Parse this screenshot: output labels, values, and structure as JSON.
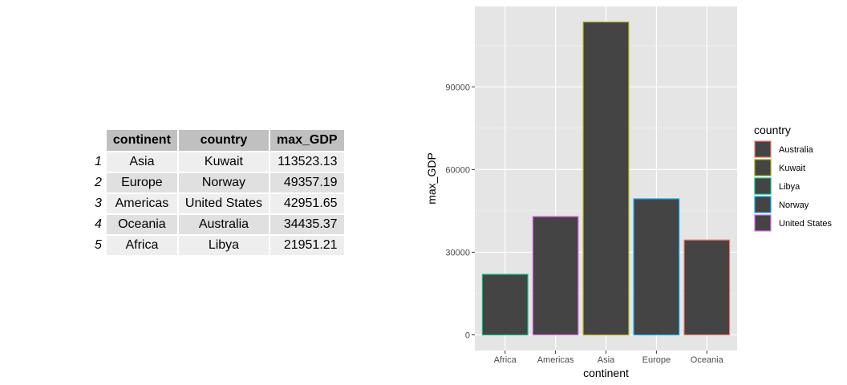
{
  "table": {
    "headers": [
      "continent",
      "country",
      "max_GDP"
    ],
    "rows": [
      {
        "rowname": "1",
        "continent": "Asia",
        "country": "Kuwait",
        "max_GDP": "113523.13"
      },
      {
        "rowname": "2",
        "continent": "Europe",
        "country": "Norway",
        "max_GDP": "49357.19"
      },
      {
        "rowname": "3",
        "continent": "Americas",
        "country": "United States",
        "max_GDP": "42951.65"
      },
      {
        "rowname": "4",
        "continent": "Oceania",
        "country": "Australia",
        "max_GDP": "34435.37"
      },
      {
        "rowname": "5",
        "continent": "Africa",
        "country": "Libya",
        "max_GDP": "21951.21"
      }
    ]
  },
  "chart_data": {
    "type": "bar",
    "categories": [
      "Africa",
      "Americas",
      "Asia",
      "Europe",
      "Oceania"
    ],
    "values": [
      21951.21,
      42951.65,
      113523.13,
      49357.19,
      34435.37
    ],
    "bar_country": [
      "Libya",
      "United States",
      "Kuwait",
      "Norway",
      "Australia"
    ],
    "xlabel": "continent",
    "ylabel": "max_GDP",
    "ylim": [
      -5676.16,
      119199.29
    ],
    "yticks": [
      0,
      30000,
      60000,
      90000
    ],
    "yticklabels": [
      "0",
      "30000",
      "60000",
      "90000"
    ],
    "grid": true,
    "panel_background": "#e5e5e5",
    "bar_fill": "#444444",
    "legend": {
      "title": "country",
      "position": "right",
      "entries": [
        {
          "name": "Australia",
          "color": "#F8766D"
        },
        {
          "name": "Kuwait",
          "color": "#A3A500"
        },
        {
          "name": "Libya",
          "color": "#00BF7D"
        },
        {
          "name": "Norway",
          "color": "#00B0F6"
        },
        {
          "name": "United States",
          "color": "#E76BF3"
        }
      ]
    }
  }
}
